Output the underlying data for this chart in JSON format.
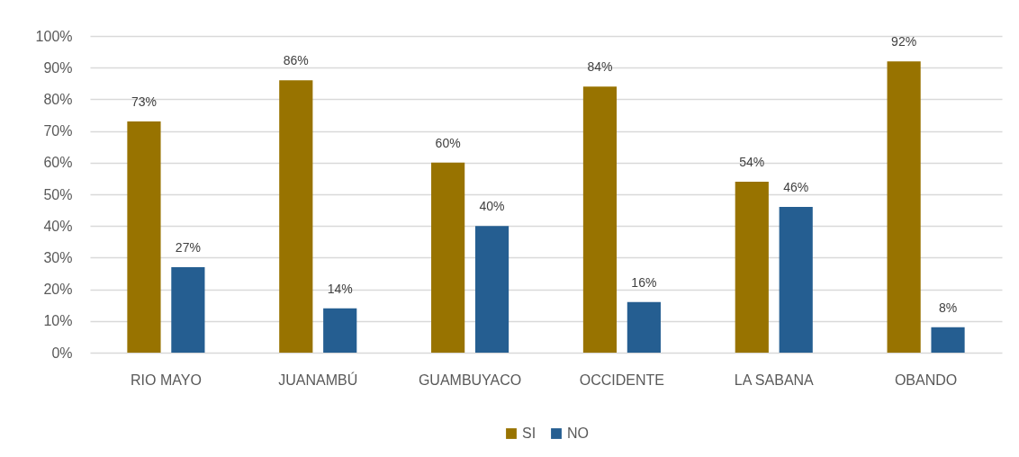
{
  "chart_data": {
    "type": "bar",
    "categories": [
      "RIO MAYO",
      "JUANAMBÚ",
      "GUAMBUYACO",
      "OCCIDENTE",
      "LA SABANA",
      "OBANDO"
    ],
    "series": [
      {
        "name": "SI",
        "color": "#987300",
        "values": [
          73,
          86,
          60,
          84,
          54,
          92
        ],
        "value_labels": [
          "73%",
          "86%",
          "60%",
          "84%",
          "54%",
          "92%"
        ]
      },
      {
        "name": "NO",
        "color": "#255e91",
        "values": [
          27,
          14,
          40,
          16,
          46,
          8
        ],
        "value_labels": [
          "27%",
          "14%",
          "40%",
          "16%",
          "46%",
          "8%"
        ]
      }
    ],
    "ylim": [
      0,
      100
    ],
    "yticks": [
      {
        "value": 0,
        "label": "0%"
      },
      {
        "value": 10,
        "label": "10%"
      },
      {
        "value": 20,
        "label": "20%"
      },
      {
        "value": 30,
        "label": "30%"
      },
      {
        "value": 40,
        "label": "40%"
      },
      {
        "value": 50,
        "label": "50%"
      },
      {
        "value": 60,
        "label": "60%"
      },
      {
        "value": 70,
        "label": "70%"
      },
      {
        "value": 80,
        "label": "80%"
      },
      {
        "value": 90,
        "label": "90%"
      },
      {
        "value": 100,
        "label": "100%"
      }
    ],
    "grid": "y",
    "legend": "bottom"
  }
}
